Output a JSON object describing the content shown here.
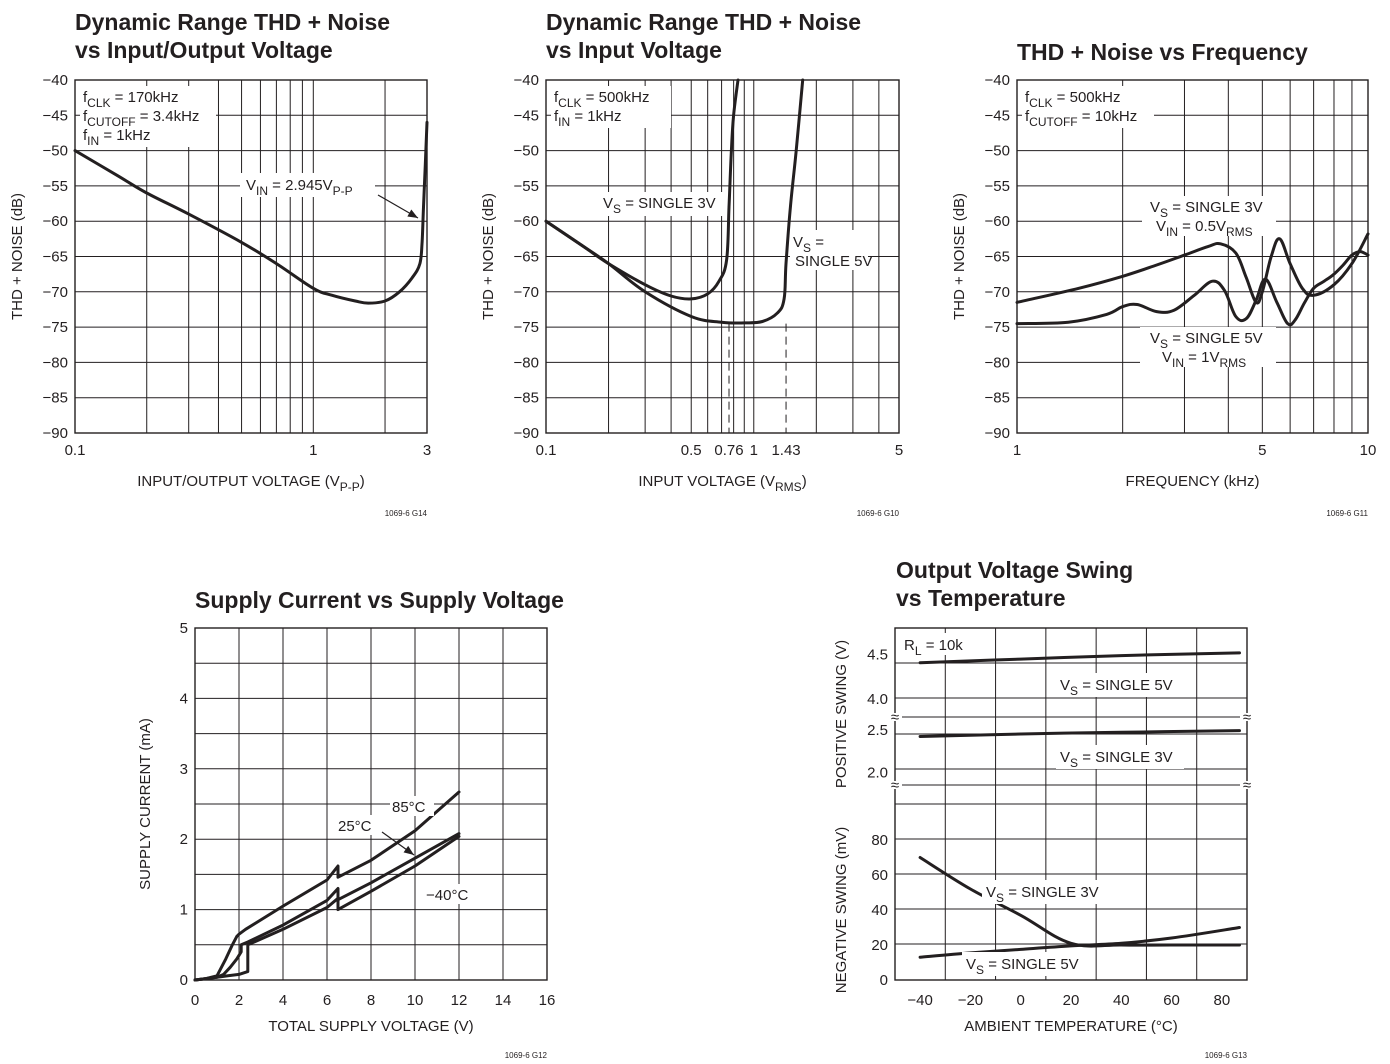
{
  "chart_data": [
    {
      "id": "g14",
      "type": "line",
      "title": [
        "Dynamic Range THD + Noise",
        "vs Input/Output Voltage"
      ],
      "ylabel": "THD + NOISE (dB)",
      "xlabel": "INPUT/OUTPUT VOLTAGE (V{P-P})",
      "x_scale": "log",
      "xlim": [
        0.1,
        3
      ],
      "ylim": [
        -90,
        -40
      ],
      "x_ticks": [
        {
          "v": 0.1,
          "label": "0.1"
        },
        {
          "v": 1,
          "label": "1"
        },
        {
          "v": 3,
          "label": "3"
        }
      ],
      "y_ticks": [
        "−40",
        "−45",
        "−50",
        "−55",
        "−60",
        "−65",
        "−70",
        "−75",
        "−80",
        "−85",
        "−90"
      ],
      "grid": true,
      "code": "1069-6 G14",
      "conditions": [
        "f{CLK} = 170kHz",
        "f{CUTOFF} = 3.4kHz",
        "f{IN} = 1kHz"
      ],
      "annotations": [
        {
          "text": "V{IN} = 2.945V{P-P}",
          "arrow_to": [
            2.9,
            -58
          ]
        }
      ],
      "series": [
        {
          "x": [
            0.1,
            0.15,
            0.2,
            0.3,
            0.5,
            0.7,
            1.0,
            1.2,
            1.5,
            1.7,
            2.0,
            2.3,
            2.6,
            2.8,
            2.86,
            2.9,
            2.95,
            3.0
          ],
          "y": [
            -50,
            -53.5,
            -56,
            -59,
            -63,
            -66,
            -69.5,
            -70.5,
            -71.3,
            -71.6,
            -71.3,
            -70,
            -68,
            -66,
            -63,
            -58,
            -52,
            -46
          ]
        }
      ]
    },
    {
      "id": "g10",
      "type": "line",
      "title": [
        "Dynamic Range THD + Noise",
        "vs Input Voltage"
      ],
      "ylabel": "THD + NOISE (dB)",
      "xlabel": "INPUT VOLTAGE (V{RMS})",
      "x_scale": "log",
      "xlim": [
        0.1,
        5
      ],
      "ylim": [
        -90,
        -40
      ],
      "x_ticks": [
        {
          "v": 0.1,
          "label": "0.1"
        },
        {
          "v": 0.5,
          "label": "0.5"
        },
        {
          "v": 0.76,
          "label": "0.76"
        },
        {
          "v": 1,
          "label": "1"
        },
        {
          "v": 1.43,
          "label": "1.43"
        },
        {
          "v": 5,
          "label": "5"
        }
      ],
      "y_ticks": [
        "−40",
        "−45",
        "−50",
        "−55",
        "−60",
        "−65",
        "−70",
        "−75",
        "−80",
        "−85",
        "−90"
      ],
      "grid": true,
      "code": "1069-6 G10",
      "conditions": [
        "f{CLK} = 500kHz",
        "f{IN} = 1kHz"
      ],
      "dashed_x": [
        0.76,
        1.43
      ],
      "series": [
        {
          "label": "V{S} = SINGLE 3V",
          "x": [
            0.1,
            0.15,
            0.2,
            0.3,
            0.4,
            0.5,
            0.6,
            0.68,
            0.74,
            0.76,
            0.78,
            0.8,
            0.84
          ],
          "y": [
            -60,
            -63.5,
            -66,
            -69,
            -70.6,
            -71,
            -70.3,
            -68.5,
            -65.5,
            -58,
            -50,
            -45,
            -40
          ]
        },
        {
          "label": "V{S} = SINGLE 5V",
          "x": [
            0.1,
            0.15,
            0.2,
            0.3,
            0.5,
            0.7,
            0.9,
            1.1,
            1.3,
            1.4,
            1.43,
            1.5,
            1.6,
            1.72
          ],
          "y": [
            -60,
            -63.5,
            -66,
            -70,
            -73.5,
            -74.3,
            -74.4,
            -74.2,
            -73,
            -71,
            -66,
            -58,
            -50,
            -40
          ]
        }
      ]
    },
    {
      "id": "g11",
      "type": "line",
      "title": [
        "THD + Noise vs Frequency"
      ],
      "ylabel": "THD + NOISE (dB)",
      "xlabel": "FREQUENCY (kHz)",
      "x_scale": "log",
      "xlim": [
        1,
        10
      ],
      "ylim": [
        -90,
        -40
      ],
      "x_ticks": [
        {
          "v": 1,
          "label": "1"
        },
        {
          "v": 5,
          "label": "5"
        },
        {
          "v": 10,
          "label": "10"
        }
      ],
      "y_ticks": [
        "−40",
        "−45",
        "−50",
        "−55",
        "−60",
        "−65",
        "−70",
        "−75",
        "−80",
        "−85",
        "−90"
      ],
      "grid": true,
      "code": "1069-6 G11",
      "conditions": [
        "f{CLK} = 500kHz",
        "f{CUTOFF} = 10kHz"
      ],
      "series": [
        {
          "label": "V{S} = SINGLE 3V|V{IN} = 0.5V{RMS}",
          "x": [
            1,
            1.5,
            2,
            2.5,
            3,
            3.5,
            3.8,
            4.2,
            4.5,
            4.8,
            5.0,
            5.3,
            5.6,
            6.0,
            6.5,
            7.0,
            8.0,
            9.0,
            10
          ],
          "y": [
            -71.5,
            -69.5,
            -67.8,
            -66.2,
            -64.8,
            -63.6,
            -63.2,
            -64.5,
            -68,
            -71.5,
            -70,
            -65,
            -62.5,
            -66,
            -69.5,
            -70.5,
            -69,
            -66,
            -61.8
          ]
        },
        {
          "label": "V{S} = SINGLE 5V|V{IN} = 1V{RMS}",
          "x": [
            1,
            1.4,
            1.8,
            2.0,
            2.2,
            2.5,
            2.8,
            3.2,
            3.6,
            3.9,
            4.2,
            4.5,
            4.8,
            5.1,
            5.5,
            5.9,
            6.2,
            6.6,
            7.0,
            7.5,
            8.0,
            8.5,
            9.0,
            9.5,
            10
          ],
          "y": [
            -74.5,
            -74.3,
            -73.2,
            -72.1,
            -71.8,
            -72.8,
            -72.6,
            -70.5,
            -68.5,
            -69.8,
            -73.5,
            -73.8,
            -71.2,
            -68.2,
            -71.5,
            -74.5,
            -74,
            -71.5,
            -69.5,
            -68.5,
            -67.5,
            -66.2,
            -64.8,
            -64.3,
            -64.8
          ]
        }
      ]
    },
    {
      "id": "g12",
      "type": "line",
      "title": [
        "Supply Current vs Supply Voltage"
      ],
      "ylabel": "SUPPLY CURRENT (mA)",
      "xlabel": "TOTAL SUPPLY VOLTAGE (V)",
      "xlim": [
        0,
        16
      ],
      "ylim": [
        0,
        5
      ],
      "x_ticks": [
        "0",
        "2",
        "4",
        "6",
        "8",
        "10",
        "12",
        "14",
        "16"
      ],
      "y_ticks": [
        "0",
        "1",
        "2",
        "3",
        "4",
        "5"
      ],
      "grid": true,
      "code": "1069-6 G12",
      "annotations": [
        {
          "text": "85°C"
        },
        {
          "text": "25°C",
          "arrow_to": [
            9.8,
            1.77
          ]
        },
        {
          "text": "−40°C"
        }
      ],
      "series": [
        {
          "label": "85°C",
          "x": [
            0,
            0.5,
            1.0,
            1.4,
            1.7,
            1.9,
            2.0,
            2.3,
            4,
            6,
            6.5,
            6.5,
            8,
            10,
            12
          ],
          "y": [
            0,
            0.02,
            0.06,
            0.3,
            0.5,
            0.62,
            0.65,
            0.72,
            1.05,
            1.42,
            1.62,
            1.46,
            1.7,
            2.12,
            2.67
          ]
        },
        {
          "label": "25°C",
          "x": [
            0,
            0.5,
            1.0,
            1.3,
            1.6,
            1.9,
            2.1,
            2.1,
            2.4,
            4,
            6,
            6.5,
            6.5,
            8,
            10,
            12
          ],
          "y": [
            0,
            0.02,
            0.04,
            0.08,
            0.18,
            0.3,
            0.4,
            0.5,
            0.54,
            0.78,
            1.13,
            1.3,
            1.14,
            1.38,
            1.73,
            2.08
          ]
        },
        {
          "label": "−40°C",
          "x": [
            0,
            0.5,
            1.0,
            1.5,
            2.0,
            2.4,
            2.4,
            4,
            6,
            6.5,
            6.5,
            8,
            10,
            12
          ],
          "y": [
            0,
            0.02,
            0.04,
            0.06,
            0.08,
            0.12,
            0.5,
            0.72,
            1.03,
            1.16,
            1.0,
            1.26,
            1.62,
            2.04
          ]
        }
      ]
    },
    {
      "id": "g13",
      "type": "line",
      "title": [
        "Output Voltage Swing",
        "vs Temperature"
      ],
      "ylabel_top": "POSITIVE SWING (V)",
      "ylabel_bottom": "NEGATIVE SWING (mV)",
      "xlabel": "AMBIENT TEMPERATURE (°C)",
      "xlim": [
        -50,
        90
      ],
      "x_ticks": [
        "−40",
        "−20",
        "0",
        "20",
        "40",
        "60",
        "80"
      ],
      "y_ticks_top": [
        "4.5",
        "4.0",
        "2.5",
        "2.0"
      ],
      "y_ticks_bottom": [
        "80",
        "60",
        "40",
        "20",
        "0"
      ],
      "grid": true,
      "code": "1069-6 G13",
      "conditions": [
        "R{L} = 10k"
      ],
      "series": [
        {
          "label": "V{S} = SINGLE 5V",
          "panel": "positive",
          "x": [
            -40,
            0,
            40,
            87
          ],
          "y": [
            4.41,
            4.45,
            4.49,
            4.52
          ]
        },
        {
          "label": "V{S} = SINGLE 3V",
          "panel": "positive",
          "x": [
            -40,
            0,
            40,
            87
          ],
          "y": [
            2.42,
            2.45,
            2.47,
            2.49
          ]
        },
        {
          "label": "V{S} = SINGLE 3V",
          "panel": "negative",
          "x": [
            -40,
            -20,
            0,
            20,
            40,
            60,
            87
          ],
          "y": [
            70,
            52,
            37,
            21,
            20,
            20,
            20
          ]
        },
        {
          "label": "V{S} = SINGLE 5V",
          "panel": "negative",
          "x": [
            -40,
            -20,
            0,
            20,
            40,
            60,
            87
          ],
          "y": [
            13,
            15.5,
            17.5,
            19.5,
            21,
            24,
            30
          ]
        }
      ]
    }
  ]
}
